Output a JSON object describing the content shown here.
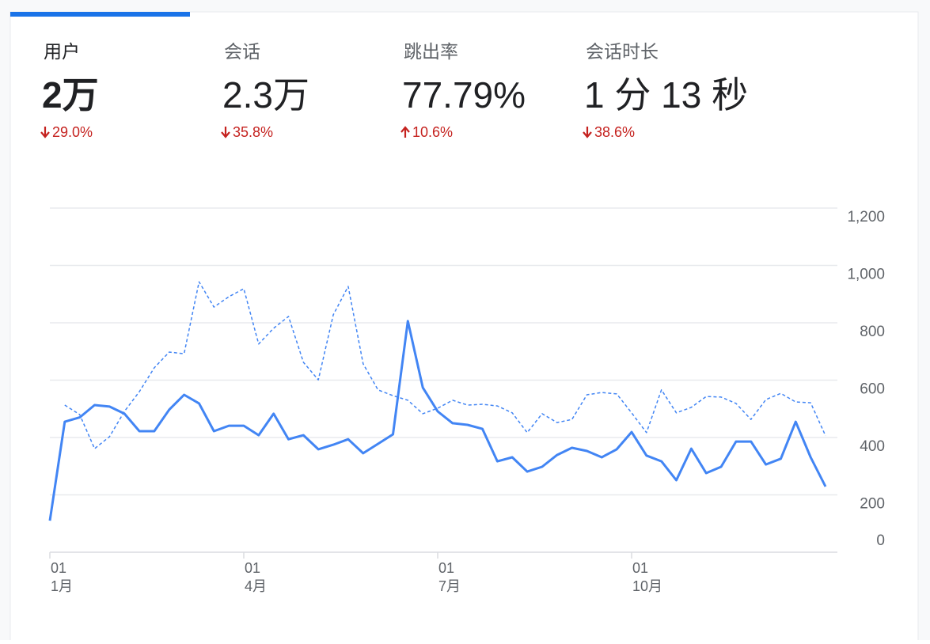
{
  "metrics": [
    {
      "label": "用户",
      "value": "2万",
      "change": "29.0%",
      "direction": "down",
      "selected": true
    },
    {
      "label": "会话",
      "value": "2.3万",
      "change": "35.8%",
      "direction": "down"
    },
    {
      "label": "跳出率",
      "value": "77.79%",
      "change": "10.6%",
      "direction": "up"
    },
    {
      "label": "会话时长",
      "value": "1 分 13 秒",
      "change": "38.6%",
      "direction": "down"
    }
  ],
  "chart_data": {
    "type": "line",
    "categories": [
      {
        "day": "01",
        "month": "1月"
      },
      null,
      null,
      null,
      null,
      null,
      null,
      null,
      null,
      null,
      null,
      null,
      null,
      {
        "day": "01",
        "month": "4月"
      },
      null,
      null,
      null,
      null,
      null,
      null,
      null,
      null,
      null,
      null,
      null,
      null,
      {
        "day": "01",
        "month": "7月"
      },
      null,
      null,
      null,
      null,
      null,
      null,
      null,
      null,
      null,
      null,
      null,
      null,
      {
        "day": "01",
        "month": "10月"
      },
      null,
      null,
      null,
      null,
      null,
      null,
      null,
      null,
      null,
      null,
      null,
      null,
      null
    ],
    "series": [
      {
        "color": "#4285f4",
        "values": [
          110,
          455,
          470,
          513,
          508,
          483,
          422,
          422,
          497,
          549,
          519,
          422,
          441,
          441,
          408,
          483,
          394,
          408,
          359,
          375,
          394,
          345,
          378,
          411,
          806,
          574,
          491,
          450,
          444,
          430,
          317,
          331,
          281,
          298,
          339,
          364,
          353,
          331,
          359,
          419,
          337,
          317,
          251,
          361,
          276,
          298,
          386,
          386,
          306,
          326,
          455,
          331,
          229
        ]
      },
      {
        "color": "#4285f4",
        "dashed": true,
        "values": [
          null,
          513,
          480,
          361,
          403,
          491,
          560,
          643,
          698,
          692,
          943,
          855,
          891,
          919,
          726,
          781,
          822,
          662,
          601,
          828,
          927,
          657,
          566,
          546,
          530,
          483,
          502,
          530,
          513,
          516,
          510,
          486,
          417,
          483,
          452,
          463,
          549,
          557,
          552,
          486,
          417,
          566,
          486,
          505,
          543,
          541,
          519,
          463,
          532,
          554,
          524,
          521,
          406
        ]
      }
    ],
    "ylim": [
      0,
      1200
    ],
    "yticks": [
      0,
      200,
      400,
      600,
      800,
      {
        "value": 1000,
        "label": "1,000"
      },
      {
        "value": 1200,
        "label": "1,200"
      }
    ],
    "grid": true
  }
}
